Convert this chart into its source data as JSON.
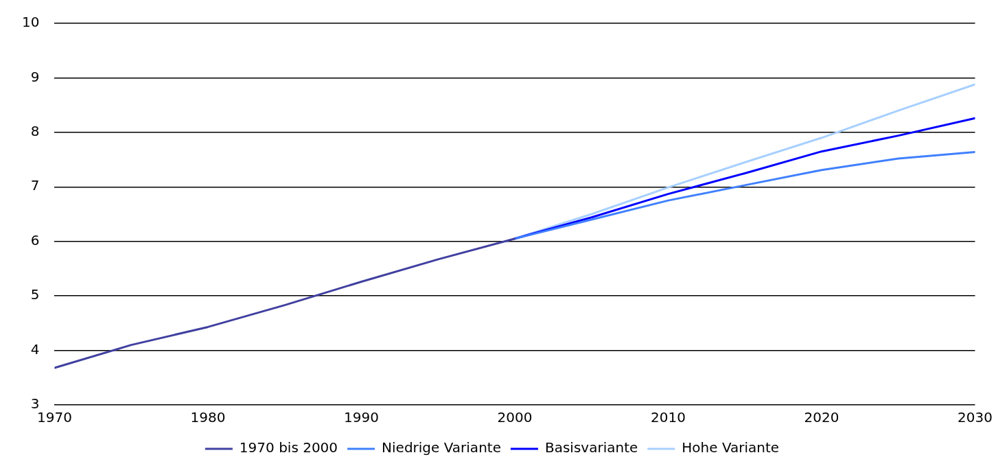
{
  "chart_data": {
    "type": "line",
    "xlim": [
      1970,
      2030
    ],
    "xticks": [
      1970,
      1980,
      1990,
      2000,
      2010,
      2020,
      2030
    ],
    "ylim": [
      3,
      10
    ],
    "yticks": [
      3,
      4,
      5,
      6,
      7,
      8,
      9,
      10
    ],
    "grid": "y",
    "legend": "bottom",
    "marker": "none",
    "line_style": "solid",
    "series": [
      {
        "name": "1970 bis 2000",
        "color": "#4040a0",
        "x": [
          1970,
          1975,
          1980,
          1985,
          1990,
          1995,
          2000
        ],
        "values": [
          3.68,
          4.1,
          4.43,
          4.83,
          5.26,
          5.67,
          6.05
        ]
      },
      {
        "name": "Niedrige Variante",
        "color": "#4080ff",
        "x": [
          2000,
          2005,
          2010,
          2015,
          2020,
          2025,
          2030
        ],
        "values": [
          6.05,
          6.4,
          6.75,
          7.03,
          7.31,
          7.52,
          7.64
        ]
      },
      {
        "name": "Basisvariante",
        "color": "#0000ff",
        "x": [
          2000,
          2005,
          2010,
          2015,
          2020,
          2025,
          2030
        ],
        "values": [
          6.05,
          6.44,
          6.87,
          7.25,
          7.65,
          7.94,
          8.26
        ]
      },
      {
        "name": "Hohe Variante",
        "color": "#a8d0ff",
        "x": [
          2000,
          2005,
          2010,
          2015,
          2020,
          2025,
          2030
        ],
        "values": [
          6.05,
          6.5,
          6.99,
          7.45,
          7.9,
          8.4,
          8.88
        ]
      }
    ]
  }
}
